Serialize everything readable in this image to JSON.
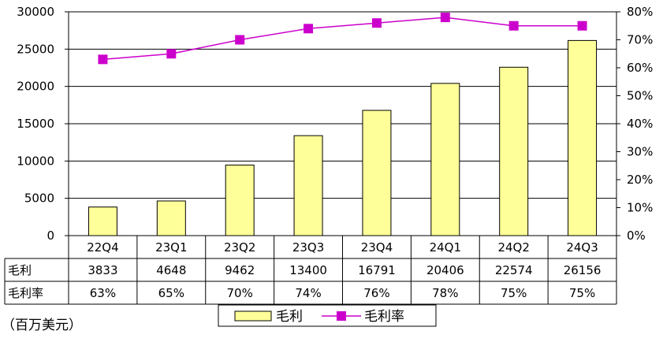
{
  "chart_data": {
    "type": "bar",
    "categories": [
      "22Q4",
      "23Q1",
      "23Q2",
      "23Q3",
      "23Q4",
      "24Q1",
      "24Q2",
      "24Q3"
    ],
    "series": [
      {
        "name": "毛利",
        "type": "bar",
        "axis": "left",
        "values": [
          3833,
          4648,
          9462,
          13400,
          16791,
          20406,
          22574,
          26156
        ],
        "labels": [
          "3833",
          "4648",
          "9462",
          "13400",
          "16791",
          "20406",
          "22574",
          "26156"
        ],
        "color": "#FFFF99"
      },
      {
        "name": "毛利率",
        "type": "line",
        "axis": "right",
        "values": [
          63,
          65,
          70,
          74,
          76,
          78,
          75,
          75
        ],
        "labels": [
          "63%",
          "65%",
          "70%",
          "74%",
          "76%",
          "78%",
          "75%",
          "75%"
        ],
        "color": "#CC00CC"
      }
    ],
    "y_left": {
      "ylim": [
        0,
        30000
      ],
      "ticks": [
        "0",
        "5000",
        "10000",
        "15000",
        "20000",
        "25000",
        "30000"
      ]
    },
    "y_right": {
      "ylim": [
        0,
        80
      ],
      "ticks": [
        "0%",
        "10%",
        "20%",
        "30%",
        "40%",
        "50%",
        "60%",
        "70%",
        "80%"
      ]
    },
    "grid": true,
    "legend_position": "bottom",
    "data_table": true,
    "unit_note": "（百万美元）"
  }
}
